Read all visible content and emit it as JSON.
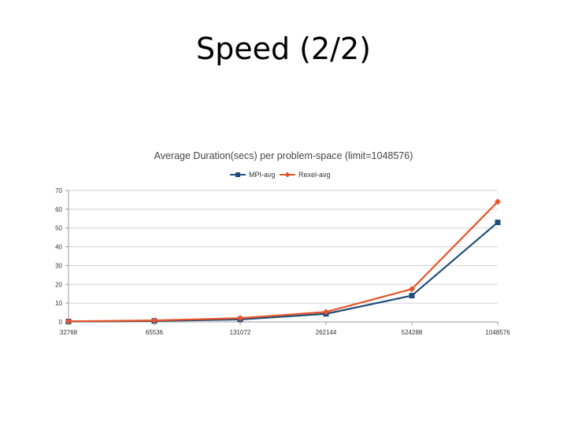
{
  "slide": {
    "title": "Speed (2/2)"
  },
  "chart_data": {
    "type": "line",
    "title": "Average Duration(secs) per problem-space (limit=1048576)",
    "xlabel": "",
    "ylabel": "",
    "categories": [
      "32768",
      "65536",
      "131072",
      "262144",
      "524288",
      "1048576"
    ],
    "ylim": [
      0,
      70
    ],
    "yticks": [
      0,
      10,
      20,
      30,
      40,
      50,
      60,
      70
    ],
    "grid": true,
    "legend_position": "top",
    "series": [
      {
        "name": "MPI-avg",
        "color": "#1f4e79",
        "marker": "square",
        "values": [
          0.2,
          0.5,
          1.3,
          4.3,
          14,
          53
        ]
      },
      {
        "name": "Rexel-avg",
        "color": "#e8542a",
        "marker": "diamond",
        "values": [
          0.3,
          0.8,
          2.0,
          5.3,
          17.5,
          64
        ]
      }
    ]
  }
}
